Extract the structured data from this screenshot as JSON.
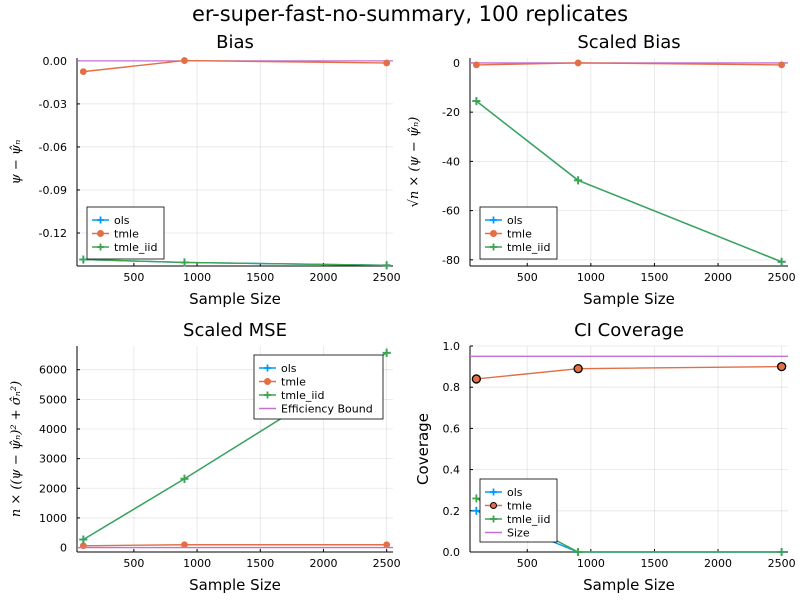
{
  "suptitle": "er-super-fast-no-summary, 100 replicates",
  "colors": {
    "ols": "#009AFA",
    "tmle": "#E26F46",
    "tmle_iid": "#3EA44E",
    "bound": "#C271D2"
  },
  "chart_data": [
    {
      "type": "line",
      "title": "Bias",
      "xlabel": "Sample Size",
      "ylabel": "ψ − ψ̂ₙ",
      "xlim": [
        50,
        2550
      ],
      "ylim": [
        -0.143,
        0.002
      ],
      "xticks": [
        500,
        1000,
        1500,
        2000,
        2500
      ],
      "xtick_labels": [
        "500",
        "1000",
        "1500",
        "2000",
        "2500"
      ],
      "yticks": [
        0.0,
        -0.03,
        -0.06,
        -0.09,
        -0.12
      ],
      "ytick_labels": [
        "0.00",
        "-0.03",
        "-0.06",
        "-0.09",
        "-0.12"
      ],
      "grid": true,
      "legend": {
        "position": "bottom-left",
        "entries": [
          "ols",
          "tmle",
          "tmle_iid"
        ]
      },
      "hline": {
        "value": 0.0
      },
      "series": [
        {
          "name": "ols",
          "x": [
            100,
            900,
            2500
          ],
          "y": [
            -0.1385,
            -0.1405,
            -0.1425
          ],
          "marker": "cross"
        },
        {
          "name": "tmle",
          "x": [
            100,
            900,
            2500
          ],
          "y": [
            -0.0075,
            0.0002,
            -0.0015
          ],
          "marker": "circle"
        },
        {
          "name": "tmle_iid",
          "x": [
            100,
            900,
            2500
          ],
          "y": [
            -0.1385,
            -0.1405,
            -0.1425
          ],
          "marker": "cross"
        }
      ]
    },
    {
      "type": "line",
      "title": "Scaled Bias",
      "xlabel": "Sample Size",
      "ylabel": "√n × (ψ − ψ̂ₙ)",
      "xlim": [
        50,
        2550
      ],
      "ylim": [
        -82.5,
        2
      ],
      "xticks": [
        500,
        1000,
        1500,
        2000,
        2500
      ],
      "xtick_labels": [
        "500",
        "1000",
        "1500",
        "2000",
        "2500"
      ],
      "yticks": [
        0,
        -20,
        -40,
        -60,
        -80
      ],
      "ytick_labels": [
        "0",
        "-20",
        "-40",
        "-60",
        "-80"
      ],
      "grid": true,
      "legend": {
        "position": "bottom-left",
        "entries": [
          "ols",
          "tmle",
          "tmle_iid"
        ]
      },
      "hline": {
        "value": 0
      },
      "series": [
        {
          "name": "ols",
          "x": [
            100,
            900,
            2500
          ],
          "y": [
            -15.5,
            -47.7,
            -80.8
          ],
          "marker": "cross"
        },
        {
          "name": "tmle",
          "x": [
            100,
            900,
            2500
          ],
          "y": [
            -0.8,
            0.0,
            -0.8
          ],
          "marker": "circle"
        },
        {
          "name": "tmle_iid",
          "x": [
            100,
            900,
            2500
          ],
          "y": [
            -15.5,
            -47.7,
            -80.8
          ],
          "marker": "cross"
        }
      ]
    },
    {
      "type": "line",
      "title": "Scaled MSE",
      "xlabel": "Sample Size",
      "ylabel": "n × ((ψ − ψ̂ₙ)² + σ̂ₙ²)",
      "xlim": [
        50,
        2550
      ],
      "ylim": [
        -150,
        6800
      ],
      "xticks": [
        500,
        1000,
        1500,
        2000,
        2500
      ],
      "xtick_labels": [
        "500",
        "1000",
        "1500",
        "2000",
        "2500"
      ],
      "yticks": [
        0,
        1000,
        2000,
        3000,
        4000,
        5000,
        6000
      ],
      "ytick_labels": [
        "0",
        "1000",
        "2000",
        "3000",
        "4000",
        "5000",
        "6000"
      ],
      "grid": true,
      "legend": {
        "position": "top-right",
        "entries": [
          "ols",
          "tmle",
          "tmle_iid",
          "Efficiency Bound"
        ]
      },
      "series": [
        {
          "name": "ols",
          "x": [
            100,
            900,
            2500
          ],
          "y": [
            270,
            2320,
            6570
          ],
          "marker": "cross"
        },
        {
          "name": "tmle",
          "x": [
            100,
            900,
            2500
          ],
          "y": [
            60,
            95,
            95
          ],
          "marker": "circle"
        },
        {
          "name": "tmle_iid",
          "x": [
            100,
            900,
            2500
          ],
          "y": [
            270,
            2320,
            6570
          ],
          "marker": "cross"
        },
        {
          "name": "Efficiency Bound",
          "x": [
            50,
            2550
          ],
          "y": [
            0,
            0
          ],
          "marker": "none"
        }
      ]
    },
    {
      "type": "line",
      "title": "CI Coverage",
      "xlabel": "Sample Size",
      "ylabel": "Coverage",
      "xlim": [
        50,
        2550
      ],
      "ylim": [
        0,
        1.0
      ],
      "xticks": [
        500,
        1000,
        1500,
        2000,
        2500
      ],
      "xtick_labels": [
        "500",
        "1000",
        "1500",
        "2000",
        "2500"
      ],
      "yticks": [
        0.0,
        0.2,
        0.4,
        0.6,
        0.8,
        1.0
      ],
      "ytick_labels": [
        "0.0",
        "0.2",
        "0.4",
        "0.6",
        "0.8",
        "1.0"
      ],
      "grid": true,
      "legend": {
        "position": "bottom-left",
        "entries": [
          "ols",
          "tmle",
          "tmle_iid",
          "Size"
        ]
      },
      "hline": {
        "value": 0.95
      },
      "series": [
        {
          "name": "ols",
          "x": [
            100,
            900,
            2500
          ],
          "y": [
            0.2,
            0.0,
            0.0
          ],
          "marker": "cross"
        },
        {
          "name": "tmle",
          "x": [
            100,
            900,
            2500
          ],
          "y": [
            0.84,
            0.89,
            0.9
          ],
          "marker": "circle-bold"
        },
        {
          "name": "tmle_iid",
          "x": [
            100,
            900,
            2500
          ],
          "y": [
            0.26,
            0.0,
            0.0
          ],
          "marker": "cross"
        },
        {
          "name": "Size",
          "x": [
            50,
            2550
          ],
          "y": [
            0.95,
            0.95
          ],
          "marker": "none"
        }
      ]
    }
  ]
}
